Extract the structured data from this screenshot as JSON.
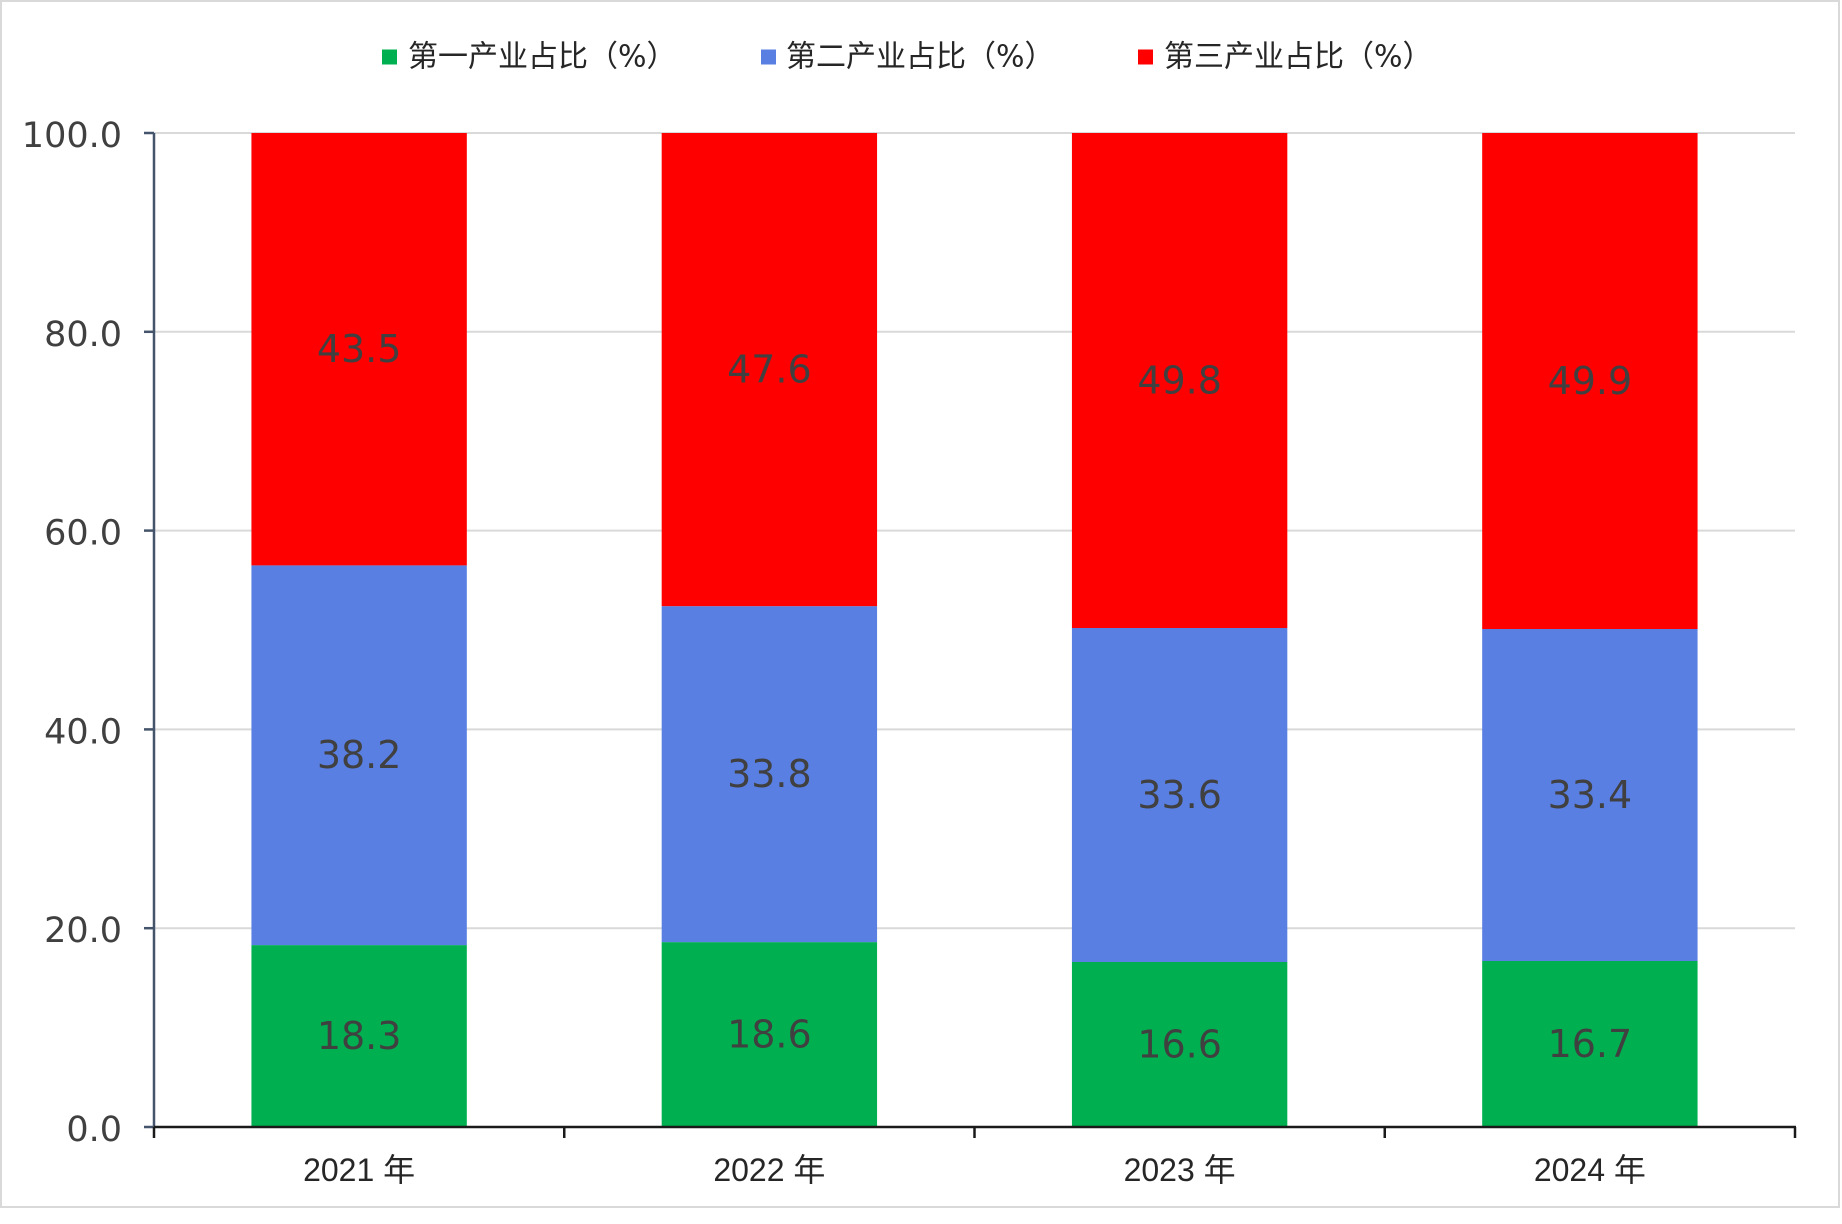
{
  "chart_data": {
    "type": "bar",
    "stacked": true,
    "categories": [
      "2021 年",
      "2022 年",
      "2023 年",
      "2024 年"
    ],
    "series": [
      {
        "name": "第一产业占比（%）",
        "color": "#00B050",
        "values": [
          18.3,
          18.6,
          16.6,
          16.7
        ]
      },
      {
        "name": "第二产业占比（%）",
        "color": "#5A7FE2",
        "values": [
          38.2,
          33.8,
          33.6,
          33.4
        ]
      },
      {
        "name": "第三产业占比（%）",
        "color": "#FF0000",
        "values": [
          43.5,
          47.6,
          49.8,
          49.9
        ]
      }
    ],
    "ylim": [
      0,
      100
    ],
    "ytick_labels": [
      "0.0",
      "20.0",
      "40.0",
      "60.0",
      "80.0",
      "100.0"
    ],
    "data_labels": true,
    "grid": true,
    "legend_position": "top"
  }
}
